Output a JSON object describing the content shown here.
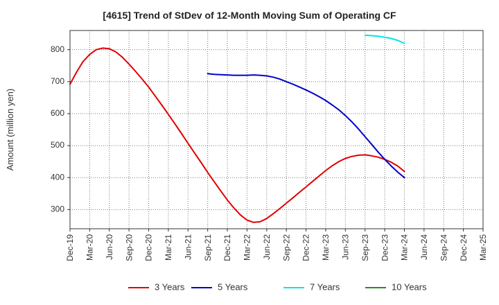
{
  "chart_data": {
    "type": "line",
    "title": "[4615]  Trend of StDev of 12-Month Moving Sum of Operating CF",
    "ylabel": "Amount (million yen)",
    "xlabel": "",
    "x_ticks": [
      "Dec-19",
      "Mar-20",
      "Jun-20",
      "Sep-20",
      "Dec-20",
      "Mar-21",
      "Jun-21",
      "Sep-21",
      "Dec-21",
      "Mar-22",
      "Jun-22",
      "Sep-22",
      "Dec-22",
      "Mar-23",
      "Jun-23",
      "Sep-23",
      "Dec-23",
      "Mar-24",
      "Jun-24",
      "Sep-24",
      "Dec-24",
      "Mar-25"
    ],
    "y_ticks": [
      300,
      400,
      500,
      600,
      700,
      800
    ],
    "ylim": [
      240,
      860
    ],
    "grid": true,
    "legend_position": "bottom",
    "series": [
      {
        "name": "3 Years",
        "color": "#e00000",
        "x": [
          "2019-12",
          "2020-01",
          "2020-02",
          "2020-03",
          "2020-04",
          "2020-05",
          "2020-06",
          "2020-07",
          "2020-08",
          "2020-09",
          "2020-10",
          "2020-11",
          "2020-12",
          "2021-01",
          "2021-02",
          "2021-03",
          "2021-04",
          "2021-05",
          "2021-06",
          "2021-07",
          "2021-08",
          "2021-09",
          "2021-10",
          "2021-11",
          "2021-12",
          "2022-01",
          "2022-02",
          "2022-03",
          "2022-04",
          "2022-05",
          "2022-06",
          "2022-07",
          "2022-08",
          "2022-09",
          "2022-10",
          "2022-11",
          "2022-12",
          "2023-01",
          "2023-02",
          "2023-03",
          "2023-04",
          "2023-05",
          "2023-06",
          "2023-07",
          "2023-08",
          "2023-09",
          "2023-10",
          "2023-11",
          "2023-12",
          "2024-01",
          "2024-02",
          "2024-03"
        ],
        "y": [
          692,
          730,
          763,
          785,
          800,
          805,
          803,
          793,
          776,
          755,
          732,
          708,
          683,
          655,
          627,
          598,
          568,
          538,
          507,
          477,
          447,
          416,
          387,
          358,
          330,
          305,
          283,
          267,
          260,
          262,
          272,
          287,
          303,
          320,
          337,
          354,
          371,
          388,
          405,
          422,
          437,
          450,
          460,
          466,
          470,
          471,
          468,
          464,
          457,
          448,
          436,
          419
        ]
      },
      {
        "name": "5 Years",
        "color": "#0000cc",
        "x": [
          "2021-09",
          "2021-10",
          "2021-11",
          "2021-12",
          "2022-01",
          "2022-02",
          "2022-03",
          "2022-04",
          "2022-05",
          "2022-06",
          "2022-07",
          "2022-08",
          "2022-09",
          "2022-10",
          "2022-11",
          "2022-12",
          "2023-01",
          "2023-02",
          "2023-03",
          "2023-04",
          "2023-05",
          "2023-06",
          "2023-07",
          "2023-08",
          "2023-09",
          "2023-10",
          "2023-11",
          "2023-12",
          "2024-01",
          "2024-02",
          "2024-03"
        ],
        "y": [
          725,
          723,
          722,
          721,
          720,
          720,
          720,
          721,
          720,
          718,
          714,
          708,
          700,
          692,
          683,
          674,
          664,
          653,
          641,
          627,
          612,
          594,
          574,
          552,
          528,
          504,
          480,
          457,
          436,
          417,
          400
        ]
      },
      {
        "name": "7 Years",
        "color": "#00e5e5",
        "x": [
          "2023-09",
          "2023-10",
          "2023-11",
          "2023-12",
          "2024-01",
          "2024-02",
          "2024-03"
        ],
        "y": [
          845,
          844,
          842,
          839,
          835,
          829,
          820
        ]
      },
      {
        "name": "10 Years",
        "color": "#228b22",
        "x": [],
        "y": []
      }
    ]
  }
}
